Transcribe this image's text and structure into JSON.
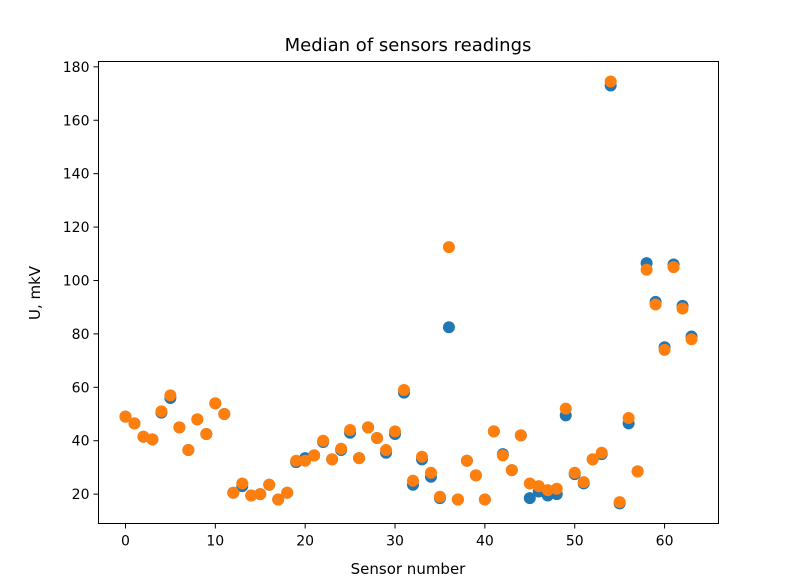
{
  "chart_data": {
    "type": "scatter",
    "title": "Median of sensors readings",
    "xlabel": "Sensor number",
    "ylabel": "U, mkV",
    "xlim": [
      -3,
      66
    ],
    "ylim": [
      9,
      182
    ],
    "xticks": [
      0,
      10,
      20,
      30,
      40,
      50,
      60
    ],
    "yticks": [
      20,
      40,
      60,
      80,
      100,
      120,
      140,
      160,
      180
    ],
    "grid": false,
    "x": [
      0,
      1,
      2,
      3,
      4,
      5,
      6,
      7,
      8,
      9,
      10,
      11,
      12,
      13,
      14,
      15,
      16,
      17,
      18,
      19,
      20,
      21,
      22,
      23,
      24,
      25,
      26,
      27,
      28,
      29,
      30,
      31,
      32,
      33,
      34,
      35,
      36,
      37,
      38,
      39,
      40,
      41,
      42,
      43,
      44,
      45,
      46,
      47,
      48,
      49,
      50,
      51,
      52,
      53,
      54,
      55,
      56,
      57,
      58,
      59,
      60,
      61,
      62,
      63
    ],
    "series": [
      {
        "color": "#1f77b4",
        "values": [
          49,
          46.5,
          41.5,
          40.5,
          50.5,
          56,
          45,
          36.5,
          48,
          42.5,
          54,
          50,
          20.5,
          23,
          19.5,
          20,
          23.5,
          18,
          20.5,
          32,
          33.5,
          34.5,
          39.5,
          33,
          36.5,
          43,
          33.5,
          45,
          41,
          35.5,
          42.5,
          58,
          23.5,
          33,
          26.5,
          18.5,
          82.5,
          18,
          32.5,
          27,
          18,
          43.5,
          35,
          29,
          42,
          18.5,
          21,
          19.5,
          20,
          49.5,
          27.5,
          24,
          33,
          35,
          173,
          16.5,
          46.5,
          28.5,
          106.5,
          92,
          75,
          106,
          90.5,
          79
        ]
      },
      {
        "color": "#ff7f0e",
        "values": [
          49,
          46.5,
          41.5,
          40.5,
          51,
          57,
          45,
          36.5,
          48,
          42.5,
          54,
          50,
          20.5,
          24,
          19.5,
          20,
          23.5,
          18,
          20.5,
          32.5,
          32.5,
          34.5,
          40,
          33,
          37,
          44,
          33.5,
          45,
          41,
          36.5,
          43.5,
          59,
          25,
          34,
          28,
          19,
          112.5,
          18,
          32.5,
          27,
          18,
          43.5,
          34.5,
          29,
          42,
          24,
          23,
          21.5,
          22,
          52,
          28,
          24.5,
          33,
          35.5,
          174.5,
          17,
          48.5,
          28.5,
          104,
          91,
          74,
          105,
          89.5,
          78
        ]
      }
    ]
  }
}
